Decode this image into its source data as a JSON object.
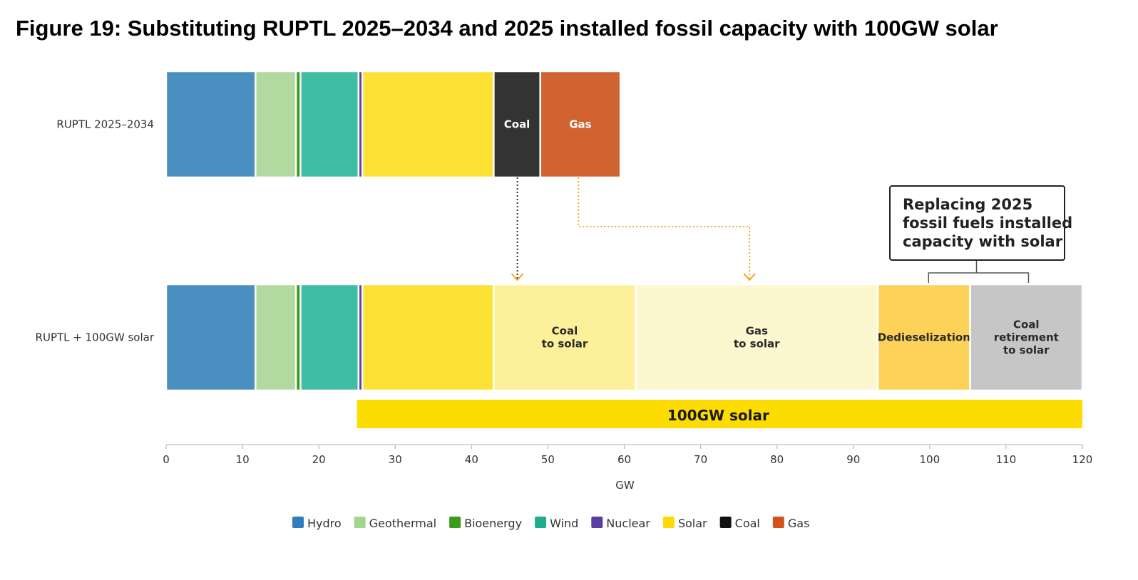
{
  "title": "Figure 19: Substituting RUPTL 2025–2034 and 2025 installed fossil capacity with 100GW solar",
  "chart_data": {
    "type": "bar",
    "orientation": "horizontal",
    "stacked": true,
    "xlabel": "GW",
    "xlim": [
      0,
      120
    ],
    "xticks": [
      0,
      10,
      20,
      30,
      40,
      50,
      60,
      70,
      80,
      90,
      100,
      110,
      120
    ],
    "grid": false,
    "legend_position": "bottom",
    "categories": [
      "RUPTL 2025–2034",
      "RUPTL + 100GW solar"
    ],
    "segments": [
      {
        "category": "RUPTL 2025–2034",
        "series": "Hydro",
        "start": 0,
        "value": 11.7,
        "label": "",
        "color": "#4a8fbf"
      },
      {
        "category": "RUPTL 2025–2034",
        "series": "Geothermal",
        "start": 11.7,
        "value": 5.3,
        "label": "",
        "color": "#b1d9a0"
      },
      {
        "category": "RUPTL 2025–2034",
        "series": "Bioenergy",
        "start": 17.0,
        "value": 0.6,
        "label": "",
        "color": "#3b9a1f"
      },
      {
        "category": "RUPTL 2025–2034",
        "series": "Wind",
        "start": 17.6,
        "value": 7.6,
        "label": "",
        "color": "#40bea3"
      },
      {
        "category": "RUPTL 2025–2034",
        "series": "Nuclear",
        "start": 25.2,
        "value": 0.5,
        "label": "",
        "color": "#5b3ea0"
      },
      {
        "category": "RUPTL 2025–2034",
        "series": "Solar",
        "start": 25.7,
        "value": 17.2,
        "label": "",
        "color": "#fde135"
      },
      {
        "category": "RUPTL 2025–2034",
        "series": "Coal",
        "start": 42.9,
        "value": 6.1,
        "label": "Coal",
        "color": "#333333"
      },
      {
        "category": "RUPTL 2025–2034",
        "series": "Gas",
        "start": 49.0,
        "value": 10.5,
        "label": "Gas",
        "color": "#d06330"
      },
      {
        "category": "RUPTL + 100GW solar",
        "series": "Hydro",
        "start": 0,
        "value": 11.7,
        "label": "",
        "color": "#4a8fbf"
      },
      {
        "category": "RUPTL + 100GW solar",
        "series": "Geothermal",
        "start": 11.7,
        "value": 5.3,
        "label": "",
        "color": "#b1d9a0"
      },
      {
        "category": "RUPTL + 100GW solar",
        "series": "Bioenergy",
        "start": 17.0,
        "value": 0.6,
        "label": "",
        "color": "#3b9a1f"
      },
      {
        "category": "RUPTL + 100GW solar",
        "series": "Wind",
        "start": 17.6,
        "value": 7.6,
        "label": "",
        "color": "#40bea3"
      },
      {
        "category": "RUPTL + 100GW solar",
        "series": "Nuclear",
        "start": 25.2,
        "value": 0.5,
        "label": "",
        "color": "#5b3ea0"
      },
      {
        "category": "RUPTL + 100GW solar",
        "series": "Solar",
        "start": 25.7,
        "value": 17.2,
        "label": "",
        "color": "#fde135"
      },
      {
        "category": "RUPTL + 100GW solar",
        "series": "Coal to solar",
        "start": 42.9,
        "value": 18.6,
        "label": "Coal\nto solar",
        "color": "#fdf09a"
      },
      {
        "category": "RUPTL + 100GW solar",
        "series": "Gas to solar",
        "start": 61.5,
        "value": 31.7,
        "label": "Gas\nto solar",
        "color": "#fdf7d0"
      },
      {
        "category": "RUPTL + 100GW solar",
        "series": "Dedieselization",
        "start": 93.2,
        "value": 12.1,
        "label": "Dedieselization",
        "color": "#fcd358"
      },
      {
        "category": "RUPTL + 100GW solar",
        "series": "Coal retirement to solar",
        "start": 105.3,
        "value": 14.7,
        "label": "Coal\nretirement\nto solar",
        "color": "#c6c6c6"
      }
    ],
    "arrows": [
      {
        "from_series": "Coal",
        "from_value": 46.0,
        "to_value": 46.0,
        "color": "#333333"
      },
      {
        "from_series": "Gas",
        "from_value": 54.0,
        "to_value": 76.4,
        "color": "#f5a623"
      }
    ],
    "total_bar": {
      "label": "100GW solar",
      "start": 25.0,
      "end": 120.0,
      "color": "#fddc00"
    },
    "callout": {
      "lines": [
        "Replacing 2025",
        "fossil fuels installed",
        "capacity with solar"
      ],
      "spans": [
        "Dedieselization",
        "Coal retirement to solar"
      ]
    },
    "legend": [
      {
        "name": "Hydro",
        "color": "#2f7dbf"
      },
      {
        "name": "Geothermal",
        "color": "#a3d58f"
      },
      {
        "name": "Bioenergy",
        "color": "#3a9b1c"
      },
      {
        "name": "Wind",
        "color": "#1fae8c"
      },
      {
        "name": "Nuclear",
        "color": "#5a3ea2"
      },
      {
        "name": "Solar",
        "color": "#fdd90a"
      },
      {
        "name": "Coal",
        "color": "#111111"
      },
      {
        "name": "Gas",
        "color": "#d4531c"
      }
    ]
  }
}
